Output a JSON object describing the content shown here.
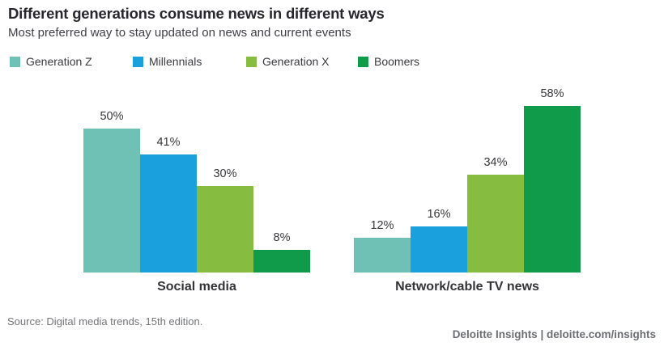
{
  "header": {
    "title": "Different generations consume news in different ways",
    "subtitle": "Most preferred way to stay updated on news and current events"
  },
  "legend": [
    {
      "label": "Generation Z",
      "color": "#6FC0B5"
    },
    {
      "label": "Millennials",
      "color": "#1AA0DC"
    },
    {
      "label": "Generation X",
      "color": "#86BD40"
    },
    {
      "label": "Boomers",
      "color": "#0F9B49"
    }
  ],
  "chart_data": {
    "type": "bar",
    "title": "Different generations consume news in different ways",
    "subtitle": "Most preferred way to stay updated on news and current events",
    "categories": [
      "Social media",
      "Network/cable TV news"
    ],
    "series": [
      {
        "name": "Generation Z",
        "color": "#6FC0B5",
        "values": [
          50,
          12
        ]
      },
      {
        "name": "Millennials",
        "color": "#1AA0DC",
        "values": [
          41,
          16
        ]
      },
      {
        "name": "Generation X",
        "color": "#86BD40",
        "values": [
          30,
          34
        ]
      },
      {
        "name": "Boomers",
        "color": "#0F9B49",
        "values": [
          8,
          58
        ]
      }
    ],
    "value_suffix": "%",
    "xlabel": "",
    "ylabel": "",
    "ylim": [
      0,
      60
    ],
    "grid": false,
    "axis_lines": false,
    "legend_position": "top",
    "data_labels": "above-bars"
  },
  "source": "Source: Digital media trends, 15th edition.",
  "footer": "Deloitte Insights | deloitte.com/insights"
}
